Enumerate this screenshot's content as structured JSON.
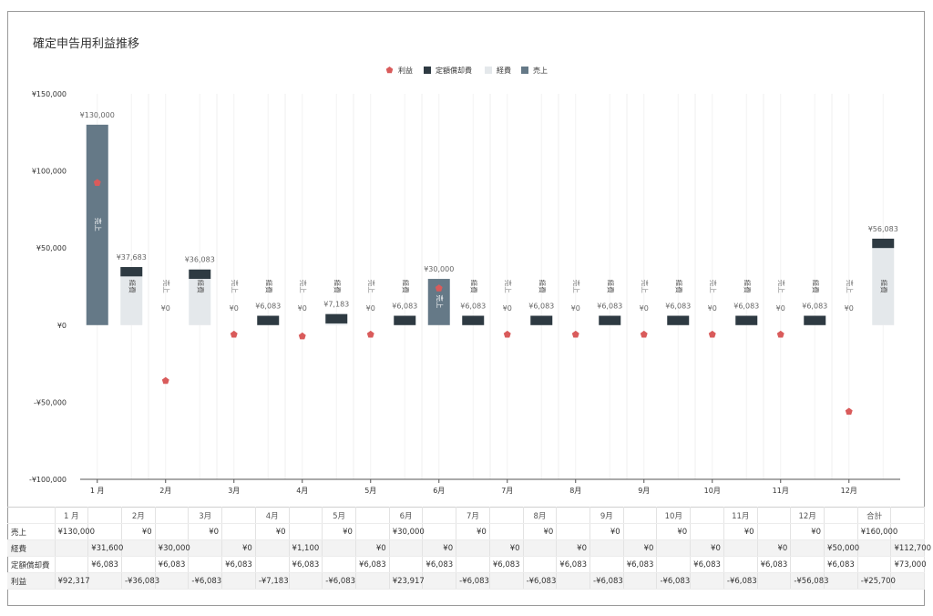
{
  "chart_data": {
    "type": "bar",
    "title": "確定申告用利益推移",
    "categories": [
      "1月",
      "2月",
      "3月",
      "4月",
      "5月",
      "6月",
      "7月",
      "8月",
      "9月",
      "10月",
      "11月",
      "12月"
    ],
    "category_labels_axis": [
      "1 月",
      "2月",
      "3月",
      "4月",
      "5月",
      "6月",
      "7月",
      "8月",
      "9月",
      "10月",
      "11月",
      "12月"
    ],
    "ylim": [
      -100000,
      150000
    ],
    "yticks": [
      150000,
      100000,
      50000,
      0,
      -50000,
      -100000
    ],
    "ytick_labels": [
      "¥150,000",
      "¥100,000",
      "¥50,000",
      "¥0",
      "-¥50,000",
      "-¥100,000"
    ],
    "legend": [
      "利益",
      "定額償却費",
      "経費",
      "売上"
    ],
    "legend_position": "top-center",
    "series": [
      {
        "name": "売上",
        "values": [
          130000,
          0,
          0,
          0,
          0,
          30000,
          0,
          0,
          0,
          0,
          0,
          0
        ]
      },
      {
        "name": "経費",
        "values": [
          31600,
          30000,
          0,
          1100,
          0,
          0,
          0,
          0,
          0,
          0,
          0,
          50000
        ]
      },
      {
        "name": "定額償却費",
        "values": [
          6083,
          6083,
          6083,
          6083,
          6083,
          6083,
          6083,
          6083,
          6083,
          6083,
          6083,
          6083
        ]
      },
      {
        "name": "利益",
        "values": [
          92317,
          -36083,
          -6083,
          -7183,
          -6083,
          23917,
          -6083,
          -6083,
          -6083,
          -6083,
          -6083,
          -56083
        ]
      }
    ],
    "stack_labels": {
      "sales": [
        "¥130,000",
        "¥0",
        "¥0",
        "¥0",
        "¥0",
        "¥30,000",
        "¥0",
        "¥0",
        "¥0",
        "¥0",
        "¥0",
        "¥0"
      ],
      "costs": [
        "¥37,683",
        "¥36,083",
        "¥6,083",
        "¥7,183",
        "¥6,083",
        "¥6,083",
        "¥6,083",
        "¥6,083",
        "¥6,083",
        "¥6,083",
        "¥6,083",
        "¥56,083"
      ]
    },
    "bar_text": {
      "sales": "売上",
      "costs": "経費"
    },
    "colors": {
      "売上": "#657987",
      "経費": "#e4e8eb",
      "定額償却費": "#2e3a42",
      "利益": "#d95b5b"
    }
  },
  "table": {
    "header": [
      "",
      "1 月",
      "",
      "2月",
      "",
      "3月",
      "",
      "4月",
      "",
      "5月",
      "",
      "6月",
      "",
      "7月",
      "",
      "8月",
      "",
      "9月",
      "",
      "10月",
      "",
      "11月",
      "",
      "12月",
      "",
      "合計",
      ""
    ],
    "rows": [
      {
        "label": "売上",
        "cells": [
          "¥130,000",
          "",
          "¥0",
          "",
          "¥0",
          "",
          "¥0",
          "",
          "¥0",
          "",
          "¥30,000",
          "",
          "¥0",
          "",
          "¥0",
          "",
          "¥0",
          "",
          "¥0",
          "",
          "¥0",
          "",
          "¥0",
          "",
          "¥160,000",
          ""
        ]
      },
      {
        "label": "経費",
        "cells": [
          "",
          "¥31,600",
          "",
          "¥30,000",
          "",
          "¥0",
          "",
          "¥1,100",
          "",
          "¥0",
          "",
          "¥0",
          "",
          "¥0",
          "",
          "¥0",
          "",
          "¥0",
          "",
          "¥0",
          "",
          "¥0",
          "",
          "¥50,000",
          "",
          "¥112,700"
        ]
      },
      {
        "label": "定額償却費",
        "cells": [
          "",
          "¥6,083",
          "",
          "¥6,083",
          "",
          "¥6,083",
          "",
          "¥6,083",
          "",
          "¥6,083",
          "",
          "¥6,083",
          "",
          "¥6,083",
          "",
          "¥6,083",
          "",
          "¥6,083",
          "",
          "¥6,083",
          "",
          "¥6,083",
          "",
          "¥6,083",
          "",
          "¥73,000"
        ]
      },
      {
        "label": "利益",
        "cells": [
          "¥92,317",
          "",
          "-¥36,083",
          "",
          "-¥6,083",
          "",
          "-¥7,183",
          "",
          "-¥6,083",
          "",
          "¥23,917",
          "",
          "-¥6,083",
          "",
          "-¥6,083",
          "",
          "-¥6,083",
          "",
          "-¥6,083",
          "",
          "-¥6,083",
          "",
          "-¥56,083",
          "",
          "-¥25,700",
          ""
        ]
      }
    ]
  }
}
